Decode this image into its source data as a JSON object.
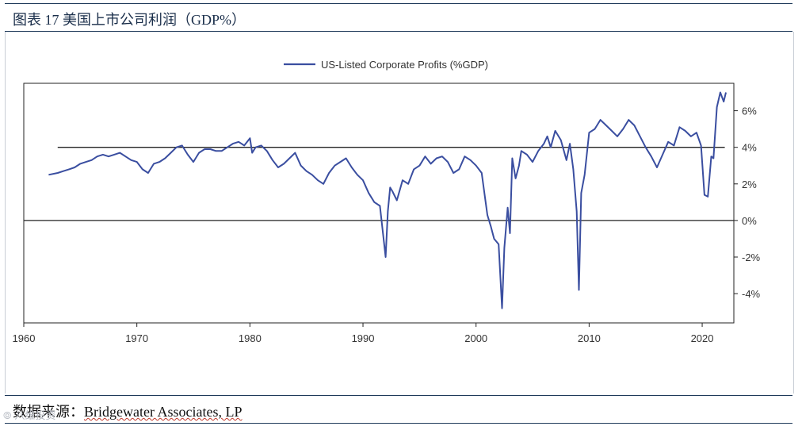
{
  "header": {
    "title": "图表 17  美国上市公司利润（GDP%）"
  },
  "footer": {
    "label": "数据来源：",
    "org": "Bridgewater Associates, LP"
  },
  "watermark": {
    "text": "⦾ 八维投资"
  },
  "colors": {
    "series": "#3a4ea0",
    "axis": "#222222",
    "frame": "#1f3a5a"
  },
  "chart_data": {
    "type": "line",
    "title": "",
    "legend": "top-center",
    "series": [
      {
        "name": "US-Listed Corporate Profits (%GDP)",
        "x": [
          1962.2,
          1963.0,
          1963.5,
          1964.0,
          1964.5,
          1965.0,
          1965.5,
          1966.0,
          1966.5,
          1967.0,
          1967.5,
          1968.0,
          1968.5,
          1969.0,
          1969.5,
          1970.0,
          1970.5,
          1971.0,
          1971.5,
          1972.0,
          1972.5,
          1973.0,
          1973.5,
          1974.0,
          1974.5,
          1975.0,
          1975.5,
          1976.0,
          1976.5,
          1977.0,
          1977.5,
          1978.0,
          1978.5,
          1979.0,
          1979.5,
          1980.0,
          1980.2,
          1980.5,
          1981.0,
          1981.5,
          1982.0,
          1982.5,
          1983.0,
          1983.5,
          1984.0,
          1984.5,
          1985.0,
          1985.5,
          1986.0,
          1986.5,
          1987.0,
          1987.5,
          1988.0,
          1988.5,
          1989.0,
          1989.5,
          1990.0,
          1990.5,
          1991.0,
          1991.5,
          1992.0,
          1992.2,
          1992.4,
          1992.6,
          1993.0,
          1993.5,
          1994.0,
          1994.5,
          1995.0,
          1995.5,
          1996.0,
          1996.5,
          1997.0,
          1997.5,
          1998.0,
          1998.5,
          1999.0,
          1999.5,
          2000.0,
          2000.5,
          2001.0,
          2001.3,
          2001.6,
          2002.0,
          2002.3,
          2002.5,
          2002.8,
          2003.0,
          2003.2,
          2003.5,
          2003.8,
          2004.0,
          2004.5,
          2005.0,
          2005.5,
          2006.0,
          2006.3,
          2006.6,
          2007.0,
          2007.5,
          2008.0,
          2008.3,
          2008.6,
          2008.9,
          2009.1,
          2009.3,
          2009.6,
          2010.0,
          2010.5,
          2011.0,
          2011.5,
          2012.0,
          2012.5,
          2013.0,
          2013.5,
          2014.0,
          2014.5,
          2015.0,
          2015.5,
          2016.0,
          2016.5,
          2017.0,
          2017.5,
          2018.0,
          2018.5,
          2019.0,
          2019.5,
          2019.9,
          2020.2,
          2020.5,
          2020.8,
          2021.0,
          2021.3,
          2021.6,
          2021.9,
          2022.1
        ],
        "values": [
          2.5,
          2.6,
          2.7,
          2.8,
          2.9,
          3.1,
          3.2,
          3.3,
          3.5,
          3.6,
          3.5,
          3.6,
          3.7,
          3.5,
          3.3,
          3.2,
          2.8,
          2.6,
          3.1,
          3.2,
          3.4,
          3.7,
          4.0,
          4.1,
          3.6,
          3.2,
          3.7,
          3.9,
          3.9,
          3.8,
          3.8,
          4.0,
          4.2,
          4.3,
          4.1,
          4.5,
          3.7,
          4.0,
          4.1,
          3.8,
          3.3,
          2.9,
          3.1,
          3.4,
          3.7,
          3.0,
          2.7,
          2.5,
          2.2,
          2.0,
          2.6,
          3.0,
          3.2,
          3.4,
          2.9,
          2.5,
          2.2,
          1.5,
          1.0,
          0.8,
          -2.0,
          0.5,
          1.8,
          1.6,
          1.1,
          2.2,
          2.0,
          2.8,
          3.0,
          3.5,
          3.1,
          3.4,
          3.5,
          3.2,
          2.6,
          2.8,
          3.5,
          3.3,
          3.0,
          2.6,
          0.3,
          -0.3,
          -1.0,
          -1.3,
          -4.8,
          -1.5,
          0.7,
          -0.7,
          3.4,
          2.3,
          3.0,
          3.8,
          3.6,
          3.2,
          3.8,
          4.2,
          4.6,
          4.0,
          4.9,
          4.4,
          3.3,
          4.2,
          2.8,
          0.5,
          -3.8,
          1.5,
          2.5,
          4.8,
          5.0,
          5.5,
          5.2,
          4.9,
          4.6,
          5.0,
          5.5,
          5.2,
          4.6,
          4.0,
          3.5,
          2.9,
          3.6,
          4.3,
          4.1,
          5.1,
          4.9,
          4.6,
          4.8,
          4.1,
          1.4,
          1.3,
          3.5,
          3.4,
          6.2,
          7.0,
          6.5,
          7.0
        ]
      }
    ],
    "reference_lines": [
      4.0,
      0.0
    ],
    "reference_line_range": [
      1963.0,
      2022.0
    ],
    "xlim": [
      1960,
      2022.8
    ],
    "ylim": [
      -5.6,
      7.5
    ],
    "xticks": [
      1960,
      1970,
      1980,
      1990,
      2000,
      2010,
      2020
    ],
    "xtick_labels": [
      "1960",
      "1970",
      "1980",
      "1990",
      "2000",
      "2010",
      "2020"
    ],
    "yticks": [
      -4,
      -2,
      0,
      2,
      4,
      6
    ],
    "ytick_labels": [
      "-4%",
      "-2%",
      "0%",
      "2%",
      "4%",
      "6%"
    ],
    "xlabel": "",
    "ylabel": ""
  }
}
